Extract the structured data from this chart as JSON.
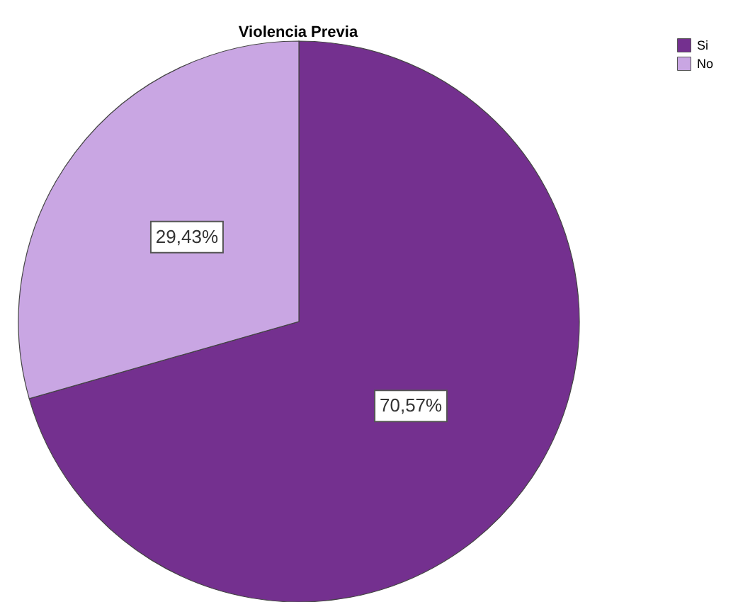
{
  "chart_data": {
    "type": "pie",
    "title": "Violencia Previa",
    "categories": [
      "Si",
      "No"
    ],
    "values": [
      70.57,
      29.43
    ],
    "colors": [
      "#74308f",
      "#c9a6e3"
    ],
    "value_labels": [
      "70,57%",
      "29,43%"
    ],
    "legend": "top right"
  }
}
